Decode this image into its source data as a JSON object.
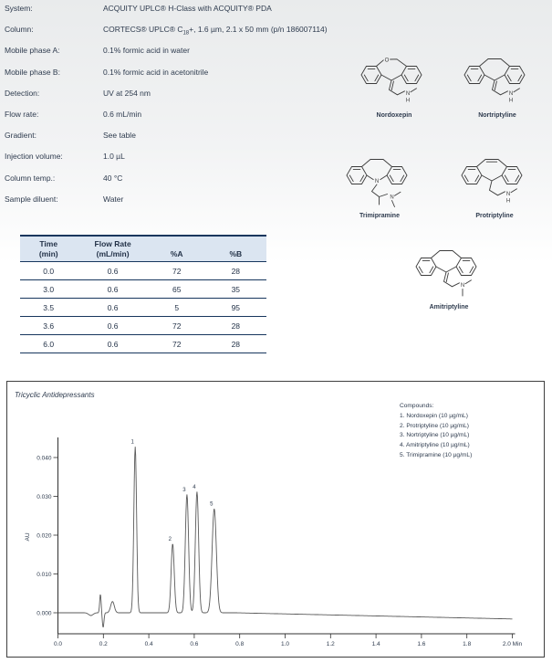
{
  "method": {
    "rows": [
      {
        "label": "System:",
        "segments": [
          {
            "t": "ACQUITY UPLC® H-Class with ACQUITY® PDA"
          }
        ]
      },
      {
        "label": "Column:",
        "segments": [
          {
            "t": "CORTECS® UPLC® C"
          },
          {
            "t": "18",
            "sub": true
          },
          {
            "t": "+, 1.6 µm, 2.1 x 50 mm (p/n 186007114)"
          }
        ]
      },
      {
        "label": "Mobile phase A:",
        "segments": [
          {
            "t": "0.1% formic acid in water"
          }
        ]
      },
      {
        "label": "Mobile phase B:",
        "segments": [
          {
            "t": "0.1% formic acid in acetonitrile"
          }
        ]
      },
      {
        "label": "Detection:",
        "segments": [
          {
            "t": "UV at 254 nm"
          }
        ]
      },
      {
        "label": "Flow rate:",
        "segments": [
          {
            "t": "0.6 mL/min"
          }
        ]
      },
      {
        "label": "Gradient:",
        "segments": [
          {
            "t": "See table"
          }
        ]
      },
      {
        "label": "Injection volume:",
        "segments": [
          {
            "t": "1.0 µL"
          }
        ]
      },
      {
        "label": "Column temp.:",
        "segments": [
          {
            "t": "40 °C"
          }
        ]
      },
      {
        "label": "Sample diluent:",
        "segments": [
          {
            "t": "Water"
          }
        ]
      }
    ]
  },
  "gradient_table": {
    "columns": [
      {
        "label": "Time",
        "sublabel": "(min)"
      },
      {
        "label": "Flow Rate",
        "sublabel": "(mL/min)"
      },
      {
        "label": "%A"
      },
      {
        "label": "%B"
      }
    ],
    "rows": [
      [
        "0.0",
        "0.6",
        "72",
        "28"
      ],
      [
        "3.0",
        "0.6",
        "65",
        "35"
      ],
      [
        "3.5",
        "0.6",
        "5",
        "95"
      ],
      [
        "3.6",
        "0.6",
        "72",
        "28"
      ],
      [
        "6.0",
        "0.6",
        "72",
        "28"
      ]
    ]
  },
  "structures": [
    {
      "name": "Nordoxepin"
    },
    {
      "name": "Nortriptyline"
    },
    {
      "name": "Trimipramine"
    },
    {
      "name": "Protriptyline"
    },
    {
      "name": "Amitriptyline"
    }
  ],
  "chromatogram": {
    "title": "Tricyclic Antidepressants",
    "legend_title": "Compounds:",
    "legend_items": [
      "1. Nordoxepin (10 µg/mL)",
      "2. Protriptyline (10 µg/mL)",
      "3. Nortriptyline (10 µg/mL)",
      "4. Amitriptyline (10 µg/mL)",
      "5. Trimipramine (10 µg/mL)"
    ]
  },
  "chart_data": {
    "type": "line",
    "title": "Tricyclic Antidepressants",
    "xlabel": "Min",
    "ylabel": "AU",
    "xlim": [
      0.0,
      2.0
    ],
    "ylim": [
      -0.005,
      0.045
    ],
    "grid": false,
    "x_ticks": [
      0.0,
      0.2,
      0.4,
      0.6,
      0.8,
      1.0,
      1.2,
      1.4,
      1.6,
      1.8,
      2.0
    ],
    "y_ticks": [
      0.0,
      0.01,
      0.02,
      0.03,
      0.04
    ],
    "peaks": [
      {
        "label": "1",
        "compound": "Nordoxepin",
        "rt_min": 0.34,
        "height_au": 0.0428,
        "sigma_min": 0.006
      },
      {
        "label": "2",
        "compound": "Protriptyline",
        "rt_min": 0.505,
        "height_au": 0.0178,
        "sigma_min": 0.0068
      },
      {
        "label": "3",
        "compound": "Nortriptyline",
        "rt_min": 0.568,
        "height_au": 0.0305,
        "sigma_min": 0.0072
      },
      {
        "label": "4",
        "compound": "Amitriptyline",
        "rt_min": 0.612,
        "height_au": 0.0312,
        "sigma_min": 0.0072
      },
      {
        "label": "5",
        "compound": "Trimipramine",
        "rt_min": 0.688,
        "height_au": 0.0268,
        "sigma_min": 0.0094
      }
    ],
    "baseline_artifacts": [
      {
        "rt_min": 0.145,
        "height_au": -0.0007,
        "sigma_min": 0.01
      },
      {
        "rt_min": 0.187,
        "height_au": 0.0048,
        "sigma_min": 0.0032
      },
      {
        "rt_min": 0.199,
        "height_au": -0.0038,
        "sigma_min": 0.0035
      },
      {
        "rt_min": 0.24,
        "height_au": 0.0029,
        "sigma_min": 0.008
      }
    ],
    "baseline_drift": {
      "start_min": 0.78,
      "end_au": -0.0016
    }
  }
}
